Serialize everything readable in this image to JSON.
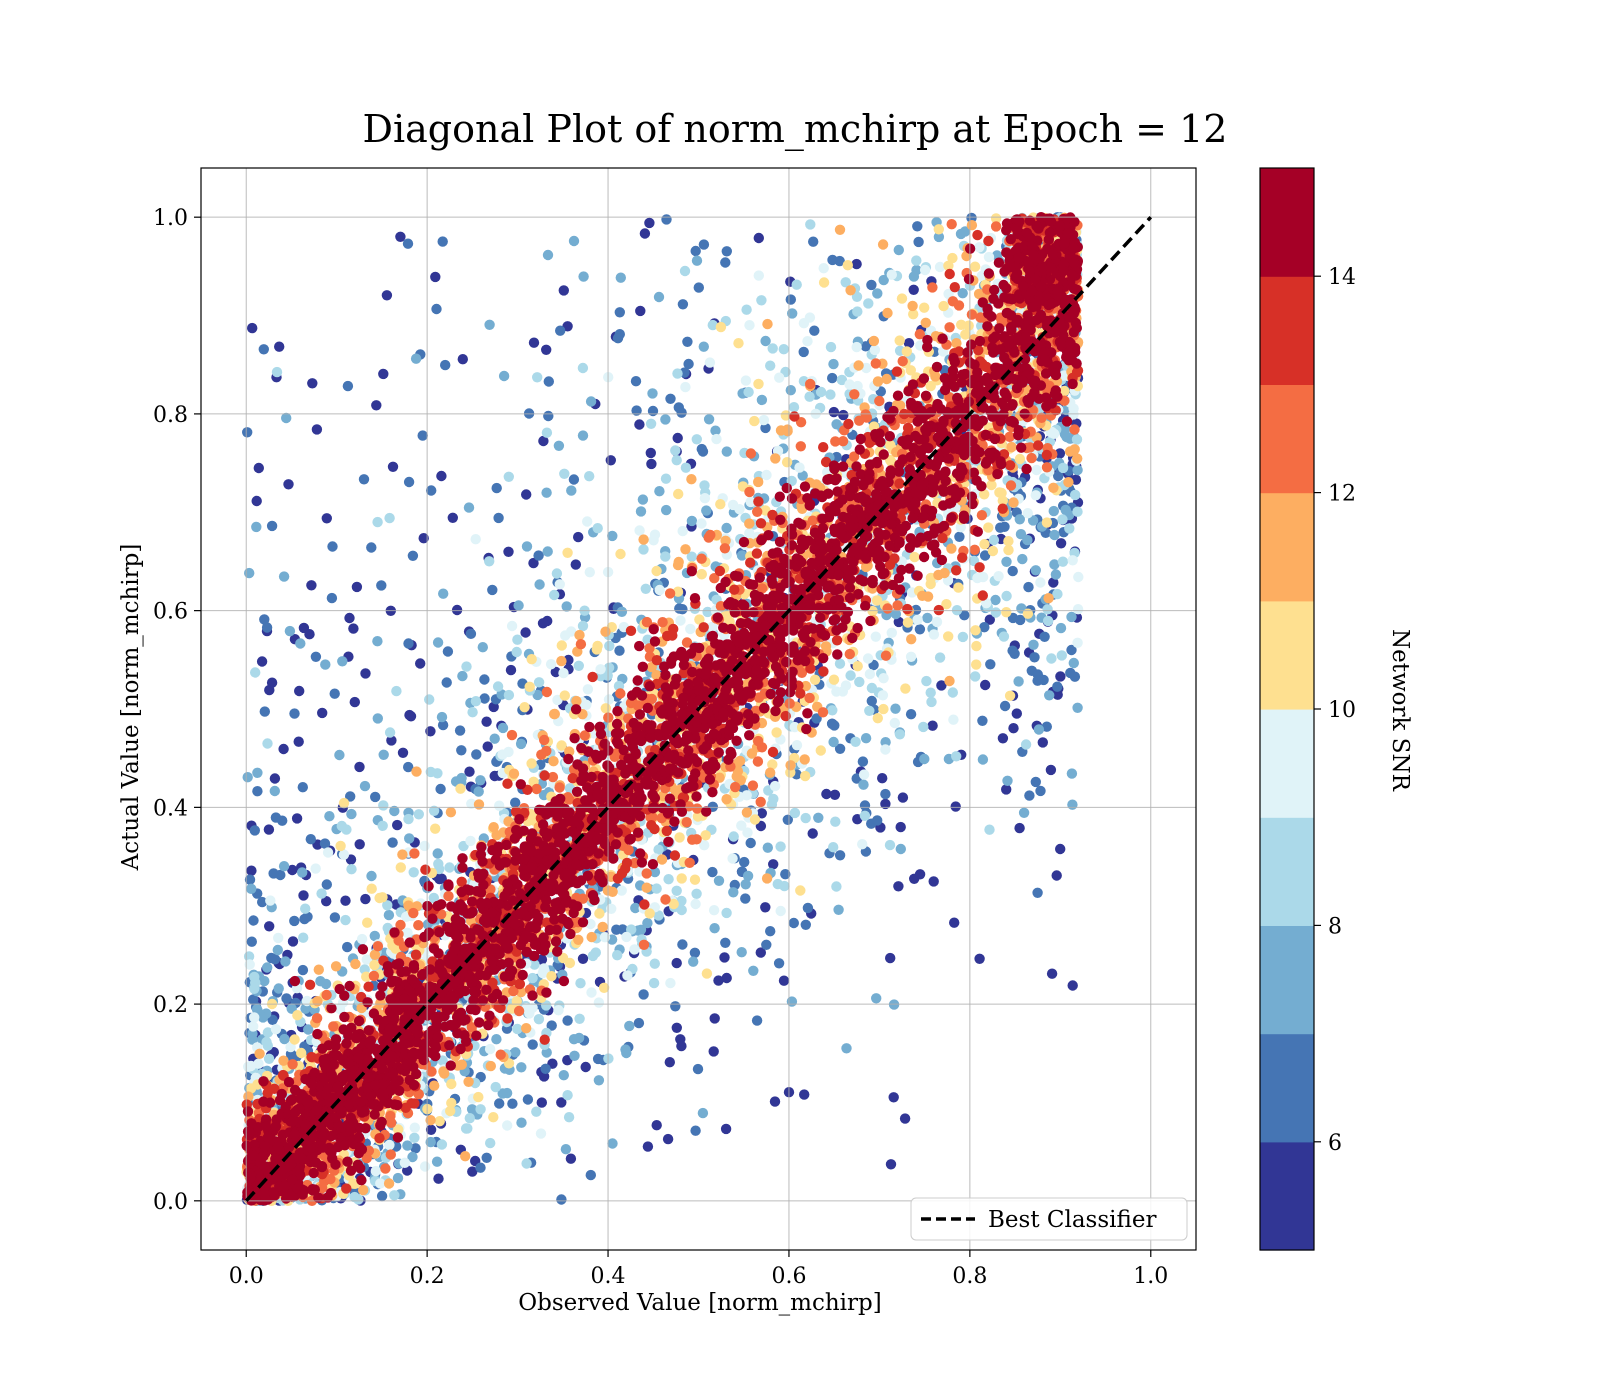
{
  "chart_data": {
    "type": "scatter",
    "title": "Diagonal Plot of norm_mchirp at Epoch = 12",
    "xlabel": "Observed Value [norm_mchirp]",
    "ylabel": "Actual Value [norm_mchirp]",
    "xlim": [
      -0.05,
      1.05
    ],
    "ylim": [
      -0.05,
      1.05
    ],
    "xticks": [
      "0.0",
      "0.2",
      "0.4",
      "0.6",
      "0.8",
      "1.0"
    ],
    "yticks": [
      "0.0",
      "0.2",
      "0.4",
      "0.6",
      "0.8",
      "1.0"
    ],
    "grid": true,
    "reference_line": {
      "label": "Best Classifier",
      "x": [
        0,
        1
      ],
      "y": [
        0,
        1
      ],
      "style": "dashed",
      "color": "#000000"
    },
    "legend": {
      "position": "bottom-right",
      "entries": [
        "Best Classifier"
      ]
    },
    "colorbar": {
      "label": "Network SNR",
      "range": [
        5,
        15
      ],
      "ticks": [
        "6",
        "8",
        "10",
        "12",
        "14"
      ],
      "colors": [
        "#313695",
        "#4575b4",
        "#74add1",
        "#abd9e9",
        "#e0f3f8",
        "#fee090",
        "#fdae61",
        "#f46d43",
        "#d73027",
        "#a50026"
      ]
    },
    "points_description_note": "",
    "scatter_model": {
      "n_points": 9000,
      "x_range": [
        0,
        0.92
      ],
      "y_range": [
        0,
        1.0
      ],
      "high_snr_near_diagonal": true
    }
  }
}
